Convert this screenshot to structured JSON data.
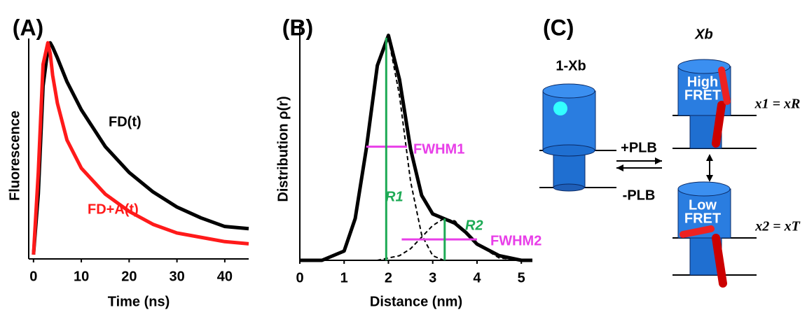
{
  "chart_data": [
    {
      "type": "line",
      "panel_label": "(A)",
      "xlabel": "Time (ns)",
      "ylabel": "Fluorescence",
      "x": [
        0,
        1,
        2,
        3,
        3.5,
        4,
        5,
        7,
        10,
        15,
        20,
        25,
        30,
        35,
        40,
        45
      ],
      "series": [
        {
          "name": "FD(t)",
          "color": "#000000",
          "values": [
            0.02,
            0.3,
            0.8,
            0.97,
            1.0,
            0.98,
            0.93,
            0.82,
            0.69,
            0.52,
            0.4,
            0.31,
            0.24,
            0.19,
            0.15,
            0.14
          ]
        },
        {
          "name": "FD+A(t)",
          "color": "#ff1a1a",
          "values": [
            0.02,
            0.4,
            0.9,
            1.0,
            0.95,
            0.85,
            0.72,
            0.55,
            0.42,
            0.3,
            0.22,
            0.16,
            0.12,
            0.1,
            0.08,
            0.07
          ]
        }
      ],
      "xlim": [
        -1,
        45
      ],
      "ylim": [
        0,
        1.02
      ],
      "xticks": [
        0,
        10,
        20,
        30,
        40
      ]
    },
    {
      "type": "line",
      "panel_label": "(B)",
      "xlabel": "Distance (nm)",
      "ylabel": "Distribution ρ(r)",
      "x": [
        0,
        0.5,
        1,
        1.25,
        1.5,
        1.75,
        2,
        2.25,
        2.5,
        2.75,
        3,
        3.25,
        3.5,
        3.75,
        4,
        4.5,
        5,
        5.25
      ],
      "series": [
        {
          "color": "#000000",
          "dashed": false,
          "values": [
            0,
            0,
            0.04,
            0.18,
            0.48,
            0.84,
            0.97,
            0.78,
            0.48,
            0.28,
            0.2,
            0.18,
            0.16,
            0.12,
            0.07,
            0.02,
            0,
            0
          ]
        },
        {
          "color": "#000000",
          "dashed": true,
          "values": [
            0,
            0,
            0.04,
            0.18,
            0.48,
            0.84,
            0.96,
            0.71,
            0.34,
            0.11,
            0.02,
            0,
            0,
            0,
            0,
            0,
            0,
            0
          ]
        },
        {
          "color": "#000000",
          "dashed": true,
          "values": [
            0,
            0,
            0,
            0,
            0,
            0,
            0.01,
            0.02,
            0.05,
            0.1,
            0.15,
            0.18,
            0.17,
            0.12,
            0.07,
            0.01,
            0,
            0
          ]
        }
      ],
      "annotations": [
        "FWHM1",
        "R1",
        "FWHM2",
        "R2"
      ],
      "xlim": [
        0,
        5.25
      ],
      "ylim": [
        0,
        1.02
      ],
      "xticks": [
        0,
        1,
        2,
        3,
        4,
        5
      ]
    }
  ],
  "panel_c": {
    "label": "(C)",
    "state_left": "1-Xb",
    "state_right": "Xb",
    "arrow_forward": "+PLB",
    "arrow_back": "-PLB",
    "high_fret": [
      "High",
      "FRET"
    ],
    "low_fret": [
      "Low",
      "FRET"
    ],
    "structure_1": "x1 = xR",
    "structure_2": "x2 = xT"
  }
}
